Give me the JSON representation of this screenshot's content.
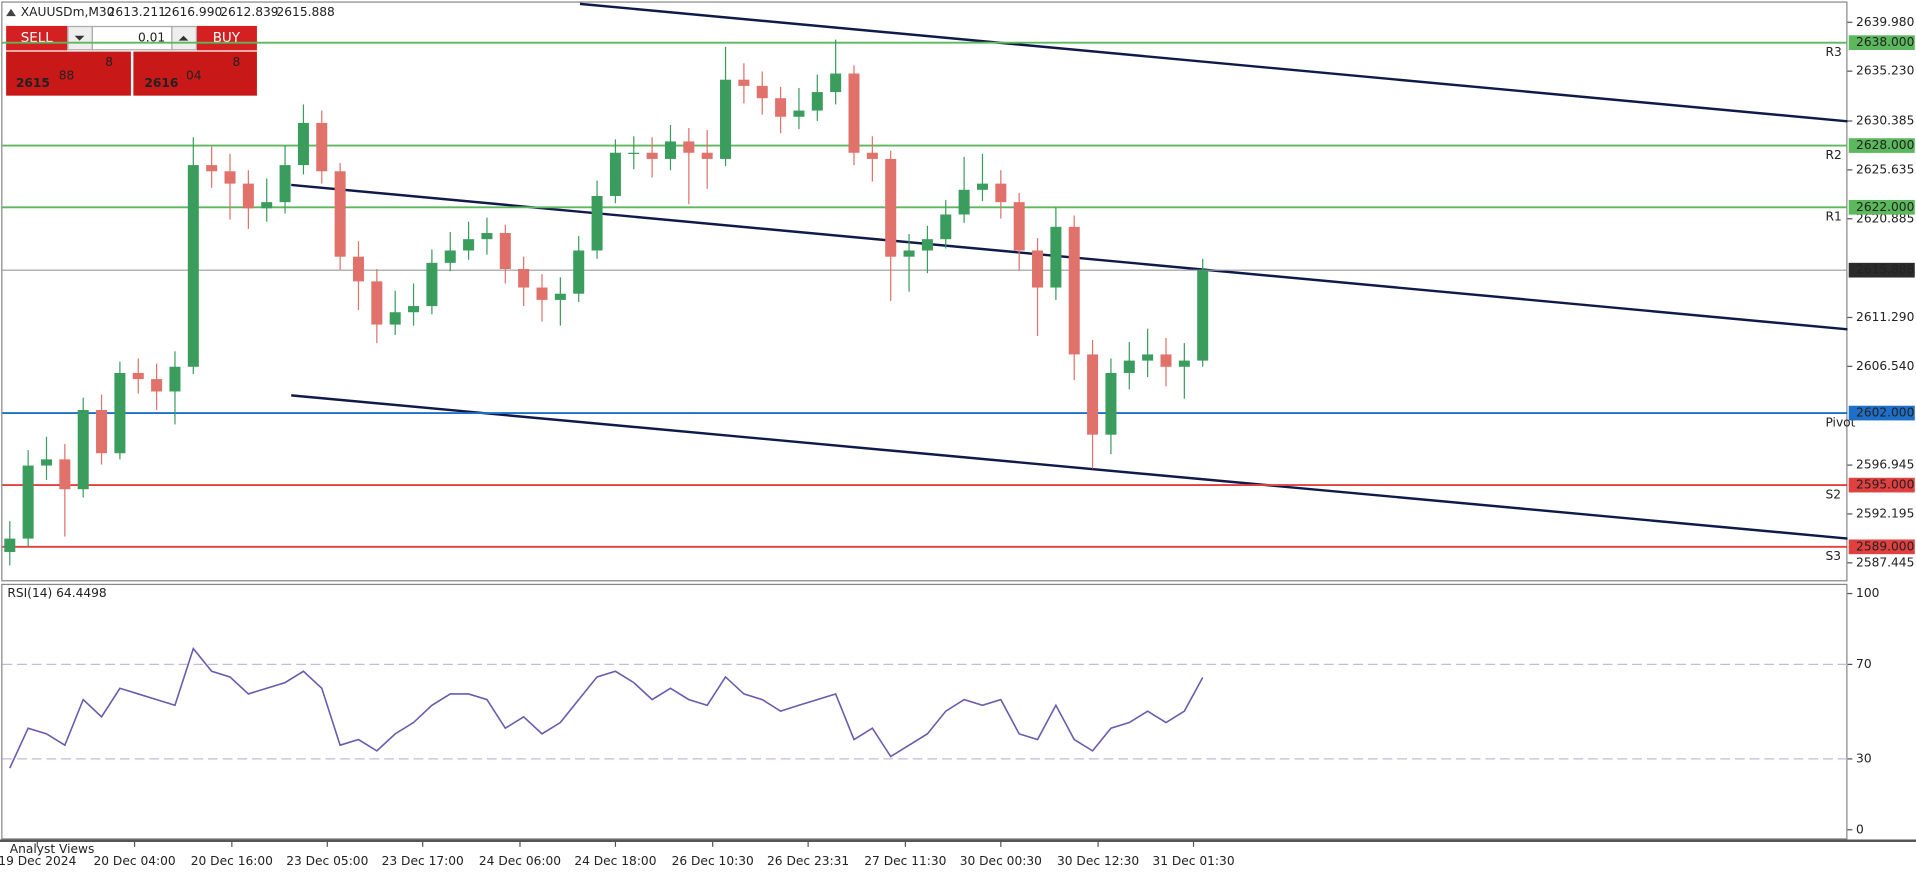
{
  "header": {
    "symbol": "XAUUSDm,M30",
    "ohlc": [
      "2613.211",
      "2616.990",
      "2612.839",
      "2615.888"
    ]
  },
  "trade_panel": {
    "sell": "SELL",
    "buy": "BUY",
    "lot": "0.01",
    "bid": {
      "big": "2615",
      "main": "88",
      "small": "8"
    },
    "ask": {
      "big": "2616",
      "main": "04",
      "small": "8"
    }
  },
  "footer": "Analyst Views",
  "chart_data": [
    {
      "type": "candlestick",
      "up_color": "#3a9d5d",
      "down_color": "#e0716b",
      "ylim": [
        2586.0,
        2641.65
      ],
      "yticks": [
        {
          "value": 2639.98,
          "label": "2639.980"
        },
        {
          "value": 2635.23,
          "label": "2635.230"
        },
        2630.385,
        2625.635,
        2620.885,
        {
          "value": 2611.29,
          "label": "2611.290"
        },
        {
          "value": 2606.54,
          "label": "2606.540"
        },
        2596.945,
        2592.195,
        2587.445
      ],
      "xticks": [
        {
          "value": 1.5,
          "label": "19 Dec 2024"
        },
        {
          "value": 6.8,
          "label": "20 Dec 04:00"
        },
        {
          "value": 12.1,
          "label": "20 Dec 16:00"
        },
        {
          "value": 17.3,
          "label": "23 Dec 05:00"
        },
        {
          "value": 22.5,
          "label": "23 Dec 17:00"
        },
        {
          "value": 27.8,
          "label": "24 Dec 06:00"
        },
        {
          "value": 33,
          "label": "24 Dec 18:00"
        },
        {
          "value": 38.3,
          "label": "26 Dec 10:30"
        },
        {
          "value": 43.5,
          "label": "26 Dec 23:31"
        },
        {
          "value": 48.8,
          "label": "27 Dec 11:30"
        },
        {
          "value": 54,
          "label": "30 Dec 00:30"
        },
        {
          "value": 59.3,
          "label": "30 Dec 12:30"
        },
        {
          "value": 64.5,
          "label": "31 Dec 01:30"
        }
      ],
      "last": 2615.888,
      "levels": [
        {
          "name": "R3",
          "value": 2638,
          "label": "2638.000",
          "color": "#5cb85c"
        },
        {
          "name": "R2",
          "value": 2628,
          "label": "2628.000",
          "color": "#5cb85c"
        },
        {
          "name": "R1",
          "value": 2622,
          "label": "2622.000",
          "color": "#5cb85c"
        },
        {
          "name": "Pivot",
          "value": 2602,
          "label": "2602.000",
          "color": "#1e6fc8"
        },
        {
          "name": "S2",
          "value": 2595,
          "label": "2595.000",
          "color": "#e04040"
        },
        {
          "name": "S3",
          "value": 2589,
          "label": "2589.000",
          "color": "#e04040"
        }
      ],
      "open": [
        2588.5,
        2589.8,
        2596.9,
        2597.5,
        2594.6,
        2602.3,
        2598.1,
        2605.9,
        2605.3,
        2604.1,
        2606.5,
        2626.1,
        2625.5,
        2624.3,
        2621.9,
        2622.5,
        2626.1,
        2630.2,
        2625.5,
        2617.2,
        2614.8,
        2610.6,
        2611.8,
        2612.4,
        2616.6,
        2617.8,
        2618.9,
        2619.5,
        2616.0,
        2614.2,
        2613.0,
        2613.6,
        2617.8,
        2623.1,
        2627.3,
        2627.3,
        2626.7,
        2628.4,
        2627.3,
        2626.7,
        2634.4,
        2633.8,
        2632.6,
        2630.8,
        2631.4,
        2633.2,
        2635.0,
        2627.3,
        2626.7,
        2617.2,
        2617.8,
        2618.9,
        2621.3,
        2623.7,
        2624.3,
        2622.5,
        2617.8,
        2614.2,
        2620.1,
        2607.7,
        2599.9,
        2605.9,
        2607.1,
        2607.7,
        2606.5,
        2607.1
      ],
      "high": [
        2591.5,
        2598.4,
        2599.7,
        2599.0,
        2603.5,
        2603.8,
        2607.0,
        2607.3,
        2606.8,
        2608.0,
        2628.8,
        2627.9,
        2627.2,
        2625.6,
        2624.8,
        2628.0,
        2632.0,
        2631.4,
        2626.3,
        2618.7,
        2616.0,
        2613.9,
        2614.6,
        2617.9,
        2619.6,
        2620.6,
        2621.0,
        2620.3,
        2617.2,
        2615.5,
        2615.2,
        2619.2,
        2624.6,
        2628.6,
        2628.9,
        2628.8,
        2630.0,
        2629.7,
        2629.5,
        2637.6,
        2636.0,
        2635.2,
        2633.7,
        2633.6,
        2634.9,
        2638.3,
        2635.8,
        2628.9,
        2627.5,
        2619.4,
        2620.2,
        2622.7,
        2626.9,
        2627.2,
        2625.6,
        2623.4,
        2619.0,
        2622.0,
        2621.2,
        2609.1,
        2607.3,
        2608.9,
        2610.2,
        2609.3,
        2608.8,
        2616.99
      ],
      "low": [
        2587.2,
        2589.0,
        2595.5,
        2590.0,
        2593.8,
        2597.0,
        2597.5,
        2603.9,
        2602.3,
        2600.9,
        2605.8,
        2623.9,
        2620.8,
        2619.9,
        2620.6,
        2621.4,
        2625.2,
        2624.3,
        2615.9,
        2612.0,
        2608.8,
        2609.6,
        2610.5,
        2611.6,
        2615.8,
        2616.9,
        2617.4,
        2614.6,
        2612.4,
        2610.9,
        2610.5,
        2612.8,
        2617.0,
        2622.4,
        2625.7,
        2624.9,
        2625.6,
        2622.3,
        2623.8,
        2626.0,
        2632.1,
        2631.0,
        2629.2,
        2629.6,
        2630.4,
        2632.0,
        2626.1,
        2624.5,
        2612.9,
        2613.8,
        2615.6,
        2618.0,
        2620.5,
        2622.6,
        2620.9,
        2615.9,
        2609.5,
        2613.0,
        2605.2,
        2596.6,
        2598.0,
        2604.3,
        2605.5,
        2604.6,
        2603.4,
        2606.5
      ],
      "close": [
        2589.8,
        2596.9,
        2597.5,
        2594.6,
        2602.3,
        2598.1,
        2605.9,
        2605.3,
        2604.1,
        2606.5,
        2626.1,
        2625.5,
        2624.3,
        2621.9,
        2622.5,
        2626.1,
        2630.2,
        2625.5,
        2617.2,
        2614.8,
        2610.6,
        2611.8,
        2612.4,
        2616.6,
        2617.8,
        2618.9,
        2619.5,
        2616.0,
        2614.2,
        2613.0,
        2613.6,
        2617.8,
        2623.1,
        2627.3,
        2627.3,
        2626.7,
        2628.4,
        2627.3,
        2626.7,
        2634.4,
        2633.8,
        2632.6,
        2630.8,
        2631.4,
        2633.2,
        2635.0,
        2627.3,
        2626.7,
        2617.2,
        2617.8,
        2618.9,
        2621.3,
        2623.7,
        2624.3,
        2622.5,
        2617.8,
        2614.2,
        2620.1,
        2607.7,
        2599.9,
        2605.9,
        2607.1,
        2607.7,
        2606.5,
        2607.1,
        2615.888
      ]
    },
    {
      "type": "line",
      "title": "RSI(14) 64.4498",
      "color": "#6b5aae",
      "ylim": [
        -3.1,
        103.6
      ],
      "yticks": [
        100,
        70,
        30,
        0
      ],
      "levels": [
        70,
        30
      ],
      "values": [
        26.1,
        43.0,
        40.6,
        35.8,
        55.1,
        47.8,
        59.9,
        57.5,
        55.1,
        52.7,
        76.7,
        67.1,
        64.7,
        57.5,
        59.9,
        62.3,
        67.1,
        59.9,
        35.8,
        38.2,
        33.4,
        40.6,
        45.4,
        52.7,
        57.5,
        57.5,
        55.1,
        43.0,
        47.8,
        40.6,
        45.4,
        55.1,
        64.7,
        67.1,
        62.3,
        55.1,
        59.9,
        55.1,
        52.7,
        64.7,
        57.5,
        55.1,
        50.2,
        52.7,
        55.1,
        57.5,
        38.2,
        43.0,
        31.0,
        35.8,
        40.6,
        50.2,
        55.1,
        52.7,
        55.1,
        40.6,
        38.2,
        52.7,
        38.2,
        33.4,
        43.0,
        45.4,
        50.2,
        45.4,
        50.2,
        64.4498
      ]
    }
  ]
}
